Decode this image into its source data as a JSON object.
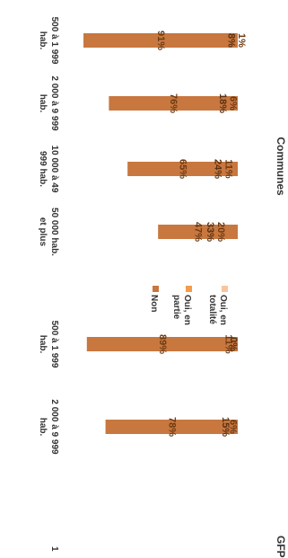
{
  "chart_data": {
    "type": "bar",
    "stacked": true,
    "orientation": "horizontal",
    "rotated": true,
    "ylim": [
      0,
      100
    ],
    "unit": "%",
    "groups": [
      {
        "title": "Communes",
        "categories": [
          "500 à 1 999 hab.",
          "2 000 à 9 999 hab.",
          "10 000 à 49 999 hab.",
          "50 000 hab. et plus"
        ]
      },
      {
        "title": "GFP",
        "categories": [
          "500 à 1 999 hab.",
          "2 000 à 9 999 hab.",
          "1"
        ]
      }
    ],
    "categories": [
      "500 à 1 999 hab.",
      "2 000 à 9 999 hab.",
      "10 000 à 49 999 hab.",
      "50 000 hab. et plus",
      "500 à 1 999 hab.",
      "2 000 à 9 999 hab."
    ],
    "series": [
      {
        "name": "Oui, en totalité",
        "color": "#f7c59f",
        "values": [
          1,
          6,
          11,
          20,
          11,
          6
        ]
      },
      {
        "name": "Oui, en partie",
        "color": "#f59b4c",
        "values": [
          8,
          18,
          24,
          33,
          0,
          15
        ]
      },
      {
        "name": "Non",
        "color": "#c8773f",
        "values": [
          91,
          76,
          65,
          47,
          89,
          78
        ]
      }
    ],
    "value_labels": [
      [
        "1%",
        "6%",
        "11%",
        "20%",
        "11%",
        "6%"
      ],
      [
        "8%",
        "18%",
        "24%",
        "33%",
        "0%",
        "15%"
      ],
      [
        "91%",
        "76%",
        "65%",
        "47%",
        "89%",
        "78%"
      ]
    ],
    "legend_position": "center (between groups)"
  }
}
